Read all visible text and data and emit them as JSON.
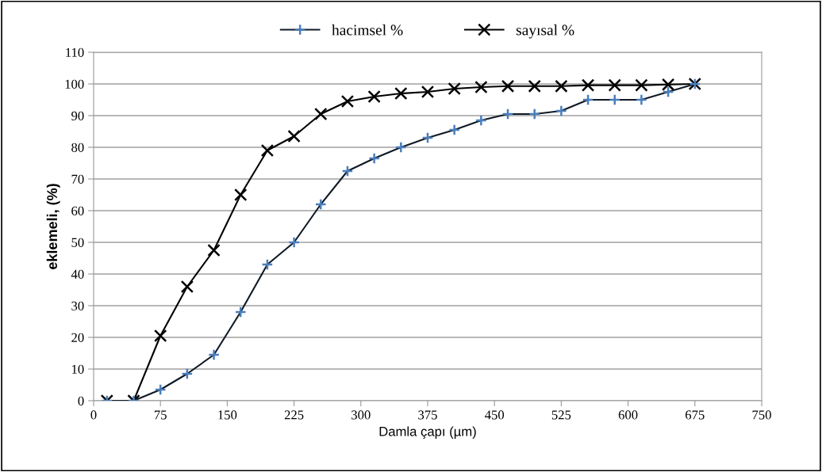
{
  "chart_data": {
    "type": "line",
    "xlabel": "Damla çapı (µm)",
    "ylabel": "eklemeli, (%)",
    "x": [
      15,
      45,
      75,
      105,
      135,
      165,
      195,
      225,
      255,
      285,
      315,
      345,
      375,
      405,
      435,
      465,
      495,
      525,
      555,
      585,
      615,
      645,
      675
    ],
    "series": [
      {
        "name": "hacimsel %",
        "color": "#4a7ebb",
        "marker": "cross",
        "values": [
          0,
          0,
          3.5,
          8.5,
          14.5,
          28,
          43,
          50,
          62,
          72.5,
          76.5,
          80,
          83,
          85.5,
          88.5,
          90.5,
          90.5,
          91.5,
          95,
          95,
          95,
          97.5,
          100
        ]
      },
      {
        "name": "sayısal %",
        "color": "#000000",
        "marker": "x",
        "values": [
          0,
          0,
          20.5,
          36,
          47.5,
          65,
          79,
          83.5,
          90.5,
          94.5,
          96,
          97,
          97.5,
          98.5,
          99,
          99.3,
          99.3,
          99.3,
          99.6,
          99.6,
          99.6,
          99.8,
          100
        ]
      }
    ],
    "xlim": [
      0,
      750
    ],
    "xticks": [
      0,
      75,
      150,
      225,
      300,
      375,
      450,
      525,
      600,
      675,
      750
    ],
    "ylim": [
      0,
      110
    ],
    "yticks": [
      0,
      10,
      20,
      30,
      40,
      50,
      60,
      70,
      80,
      90,
      100,
      110
    ],
    "grid": "y",
    "legend": "top"
  }
}
